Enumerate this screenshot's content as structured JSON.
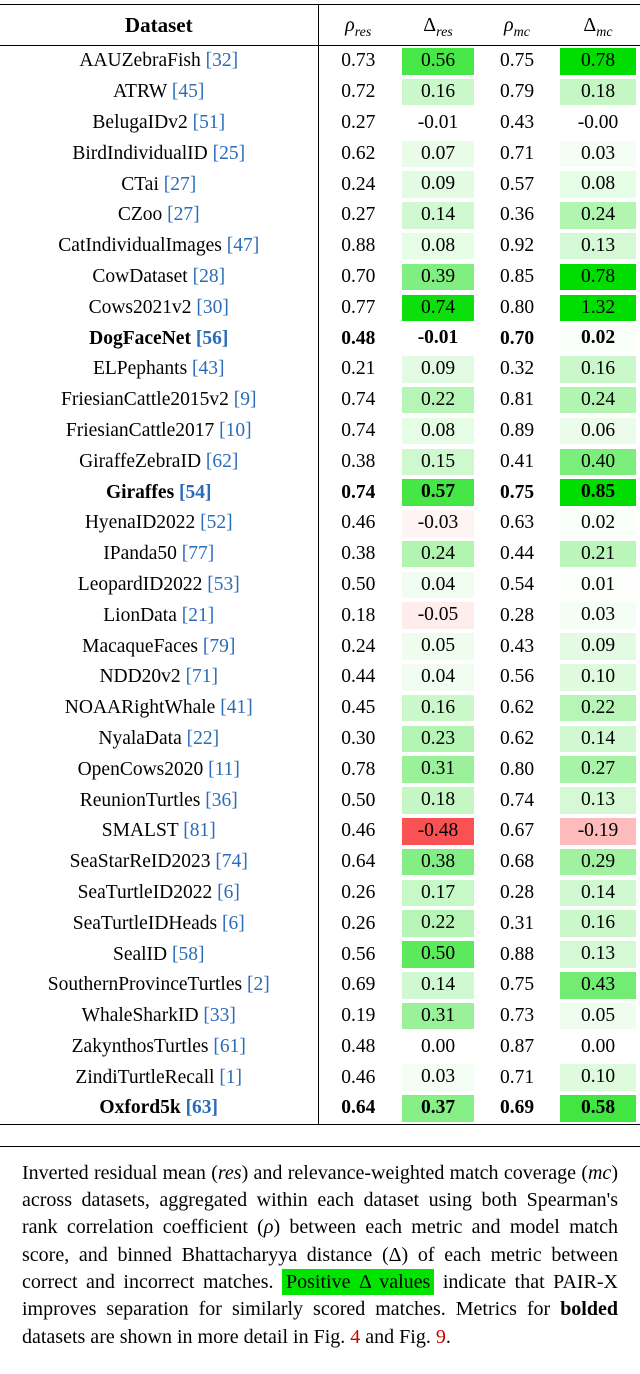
{
  "colors": {
    "green_base": "#00dd00",
    "red_base": "#fa4b4b",
    "cite": "#2b6cb8",
    "figref": "#cc0000",
    "highlight": "#00e400"
  },
  "heat_scale": {
    "green_full_at": 0.78,
    "red_full_at": 0.5
  },
  "table": {
    "header": {
      "dataset": "Dataset",
      "cols": [
        {
          "sym": "ρ",
          "sub": "res"
        },
        {
          "sym": "Δ",
          "sub": "res"
        },
        {
          "sym": "ρ",
          "sub": "mc"
        },
        {
          "sym": "Δ",
          "sub": "mc"
        }
      ]
    },
    "rows": [
      {
        "name": "AAUZebraFish",
        "cite": "[32]",
        "bold": false,
        "rho_res": "0.73",
        "d_res": "0.56",
        "rho_mc": "0.75",
        "d_mc": "0.78"
      },
      {
        "name": "ATRW",
        "cite": "[45]",
        "bold": false,
        "rho_res": "0.72",
        "d_res": "0.16",
        "rho_mc": "0.79",
        "d_mc": "0.18"
      },
      {
        "name": "BelugaIDv2",
        "cite": "[51]",
        "bold": false,
        "rho_res": "0.27",
        "d_res": "-0.01",
        "rho_mc": "0.43",
        "d_mc": "-0.00"
      },
      {
        "name": "BirdIndividualID",
        "cite": "[25]",
        "bold": false,
        "rho_res": "0.62",
        "d_res": "0.07",
        "rho_mc": "0.71",
        "d_mc": "0.03"
      },
      {
        "name": "CTai",
        "cite": "[27]",
        "bold": false,
        "rho_res": "0.24",
        "d_res": "0.09",
        "rho_mc": "0.57",
        "d_mc": "0.08"
      },
      {
        "name": "CZoo",
        "cite": "[27]",
        "bold": false,
        "rho_res": "0.27",
        "d_res": "0.14",
        "rho_mc": "0.36",
        "d_mc": "0.24"
      },
      {
        "name": "CatIndividualImages",
        "cite": "[47]",
        "bold": false,
        "rho_res": "0.88",
        "d_res": "0.08",
        "rho_mc": "0.92",
        "d_mc": "0.13"
      },
      {
        "name": "CowDataset",
        "cite": "[28]",
        "bold": false,
        "rho_res": "0.70",
        "d_res": "0.39",
        "rho_mc": "0.85",
        "d_mc": "0.78"
      },
      {
        "name": "Cows2021v2",
        "cite": "[30]",
        "bold": false,
        "rho_res": "0.77",
        "d_res": "0.74",
        "rho_mc": "0.80",
        "d_mc": "1.32"
      },
      {
        "name": "DogFaceNet",
        "cite": "[56]",
        "bold": true,
        "rho_res": "0.48",
        "d_res": "-0.01",
        "rho_mc": "0.70",
        "d_mc": "0.02"
      },
      {
        "name": "ELPephants",
        "cite": "[43]",
        "bold": false,
        "rho_res": "0.21",
        "d_res": "0.09",
        "rho_mc": "0.32",
        "d_mc": "0.16"
      },
      {
        "name": "FriesianCattle2015v2",
        "cite": "[9]",
        "bold": false,
        "rho_res": "0.74",
        "d_res": "0.22",
        "rho_mc": "0.81",
        "d_mc": "0.24"
      },
      {
        "name": "FriesianCattle2017",
        "cite": "[10]",
        "bold": false,
        "rho_res": "0.74",
        "d_res": "0.08",
        "rho_mc": "0.89",
        "d_mc": "0.06"
      },
      {
        "name": "GiraffeZebraID",
        "cite": "[62]",
        "bold": false,
        "rho_res": "0.38",
        "d_res": "0.15",
        "rho_mc": "0.41",
        "d_mc": "0.40"
      },
      {
        "name": "Giraffes",
        "cite": "[54]",
        "bold": true,
        "rho_res": "0.74",
        "d_res": "0.57",
        "rho_mc": "0.75",
        "d_mc": "0.85"
      },
      {
        "name": "HyenaID2022",
        "cite": "[52]",
        "bold": false,
        "rho_res": "0.46",
        "d_res": "-0.03",
        "rho_mc": "0.63",
        "d_mc": "0.02"
      },
      {
        "name": "IPanda50",
        "cite": "[77]",
        "bold": false,
        "rho_res": "0.38",
        "d_res": "0.24",
        "rho_mc": "0.44",
        "d_mc": "0.21"
      },
      {
        "name": "LeopardID2022",
        "cite": "[53]",
        "bold": false,
        "rho_res": "0.50",
        "d_res": "0.04",
        "rho_mc": "0.54",
        "d_mc": "0.01"
      },
      {
        "name": "LionData",
        "cite": "[21]",
        "bold": false,
        "rho_res": "0.18",
        "d_res": "-0.05",
        "rho_mc": "0.28",
        "d_mc": "0.03"
      },
      {
        "name": "MacaqueFaces",
        "cite": "[79]",
        "bold": false,
        "rho_res": "0.24",
        "d_res": "0.05",
        "rho_mc": "0.43",
        "d_mc": "0.09"
      },
      {
        "name": "NDD20v2",
        "cite": "[71]",
        "bold": false,
        "rho_res": "0.44",
        "d_res": "0.04",
        "rho_mc": "0.56",
        "d_mc": "0.10"
      },
      {
        "name": "NOAARightWhale",
        "cite": "[41]",
        "bold": false,
        "rho_res": "0.45",
        "d_res": "0.16",
        "rho_mc": "0.62",
        "d_mc": "0.22"
      },
      {
        "name": "NyalaData",
        "cite": "[22]",
        "bold": false,
        "rho_res": "0.30",
        "d_res": "0.23",
        "rho_mc": "0.62",
        "d_mc": "0.14"
      },
      {
        "name": "OpenCows2020",
        "cite": "[11]",
        "bold": false,
        "rho_res": "0.78",
        "d_res": "0.31",
        "rho_mc": "0.80",
        "d_mc": "0.27"
      },
      {
        "name": "ReunionTurtles",
        "cite": "[36]",
        "bold": false,
        "rho_res": "0.50",
        "d_res": "0.18",
        "rho_mc": "0.74",
        "d_mc": "0.13"
      },
      {
        "name": "SMALST",
        "cite": "[81]",
        "bold": false,
        "rho_res": "0.46",
        "d_res": "-0.48",
        "rho_mc": "0.67",
        "d_mc": "-0.19"
      },
      {
        "name": "SeaStarReID2023",
        "cite": "[74]",
        "bold": false,
        "rho_res": "0.64",
        "d_res": "0.38",
        "rho_mc": "0.68",
        "d_mc": "0.29"
      },
      {
        "name": "SeaTurtleID2022",
        "cite": "[6]",
        "bold": false,
        "rho_res": "0.26",
        "d_res": "0.17",
        "rho_mc": "0.28",
        "d_mc": "0.14"
      },
      {
        "name": "SeaTurtleIDHeads",
        "cite": "[6]",
        "bold": false,
        "rho_res": "0.26",
        "d_res": "0.22",
        "rho_mc": "0.31",
        "d_mc": "0.16"
      },
      {
        "name": "SealID",
        "cite": "[58]",
        "bold": false,
        "rho_res": "0.56",
        "d_res": "0.50",
        "rho_mc": "0.88",
        "d_mc": "0.13"
      },
      {
        "name": "SouthernProvinceTurtles",
        "cite": "[2]",
        "bold": false,
        "rho_res": "0.69",
        "d_res": "0.14",
        "rho_mc": "0.75",
        "d_mc": "0.43"
      },
      {
        "name": "WhaleSharkID",
        "cite": "[33]",
        "bold": false,
        "rho_res": "0.19",
        "d_res": "0.31",
        "rho_mc": "0.73",
        "d_mc": "0.05"
      },
      {
        "name": "ZakynthosTurtles",
        "cite": "[61]",
        "bold": false,
        "rho_res": "0.48",
        "d_res": "0.00",
        "rho_mc": "0.87",
        "d_mc": "0.00"
      },
      {
        "name": "ZindiTurtleRecall",
        "cite": "[1]",
        "bold": false,
        "rho_res": "0.46",
        "d_res": "0.03",
        "rho_mc": "0.71",
        "d_mc": "0.10"
      },
      {
        "name": "Oxford5k",
        "cite": "[63]",
        "bold": true,
        "rho_res": "0.64",
        "d_res": "0.37",
        "rho_mc": "0.69",
        "d_mc": "0.58"
      }
    ]
  },
  "caption": {
    "segments": [
      {
        "t": "Inverted residual mean (",
        "s": ""
      },
      {
        "t": "res",
        "s": "i"
      },
      {
        "t": ") and relevance-weighted match coverage (",
        "s": ""
      },
      {
        "t": "mc",
        "s": "i"
      },
      {
        "t": ") across datasets, aggregated within each dataset using both Spearman's rank correlation coefficient (",
        "s": ""
      },
      {
        "t": "ρ",
        "s": "i"
      },
      {
        "t": ") between each metric and model match score, and binned Bhattacharyya distance (",
        "s": ""
      },
      {
        "t": "Δ",
        "s": ""
      },
      {
        "t": ") of each metric between correct and incorrect matches. ",
        "s": ""
      },
      {
        "t": "Positive Δ values",
        "s": "hl"
      },
      {
        "t": " indicate that PAIR-X improves separation for similarly scored matches. Metrics for ",
        "s": ""
      },
      {
        "t": "bolded",
        "s": "b"
      },
      {
        "t": " datasets are shown in more detail in Fig. ",
        "s": ""
      },
      {
        "t": "4",
        "s": "ref"
      },
      {
        "t": " and Fig. ",
        "s": ""
      },
      {
        "t": "9",
        "s": "ref"
      },
      {
        "t": ".",
        "s": ""
      }
    ]
  }
}
